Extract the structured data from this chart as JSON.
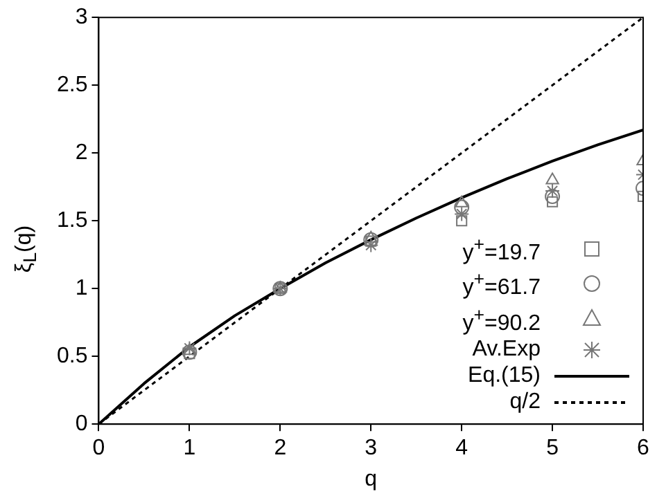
{
  "chart_data": {
    "type": "scatter",
    "xlabel": "q",
    "ylabel": "ξ$_{L}$(q)",
    "xlim": [
      0,
      6
    ],
    "ylim": [
      0,
      3
    ],
    "xticks": [
      0,
      1,
      2,
      3,
      4,
      5,
      6
    ],
    "yticks": [
      0,
      0.5,
      1,
      1.5,
      2,
      2.5,
      3
    ],
    "grid": false,
    "legend": "bottom right",
    "series": [
      {
        "name": "y$^{+}$=19.7",
        "marker": "square",
        "color": "#777777",
        "x": [
          1,
          2,
          3,
          4,
          5,
          6
        ],
        "values": [
          0.52,
          1.0,
          1.35,
          1.5,
          1.64,
          1.68
        ]
      },
      {
        "name": "y$^{+}$=61.7",
        "marker": "circle",
        "color": "#777777",
        "x": [
          1,
          2,
          3,
          4,
          5,
          6
        ],
        "values": [
          0.53,
          1.0,
          1.36,
          1.6,
          1.68,
          1.74
        ]
      },
      {
        "name": "y$^{+}$=90.2",
        "marker": "triangle",
        "color": "#777777",
        "x": [
          1,
          2,
          3,
          4,
          5,
          6
        ],
        "values": [
          0.54,
          1.0,
          1.37,
          1.63,
          1.8,
          1.94
        ]
      },
      {
        "name": "Av.Exp",
        "marker": "cross",
        "color": "#777777",
        "x": [
          1,
          2,
          3,
          4,
          5,
          6
        ],
        "values": [
          0.56,
          1.0,
          1.32,
          1.55,
          1.72,
          1.84
        ]
      },
      {
        "name": "Eq.(15)",
        "type": "line",
        "marker": "none",
        "line_style": "solid",
        "color": "#000000",
        "x": [
          0,
          0.5,
          1,
          1.5,
          2,
          2.5,
          3,
          3.5,
          4,
          4.5,
          5,
          5.5,
          6
        ],
        "values": [
          0,
          0.3,
          0.57,
          0.8,
          1.0,
          1.19,
          1.36,
          1.52,
          1.67,
          1.81,
          1.94,
          2.06,
          2.17
        ]
      },
      {
        "name": "q/2",
        "type": "line",
        "marker": "none",
        "line_style": "dashed",
        "color": "#000000",
        "x": [
          0,
          6
        ],
        "values": [
          0,
          3
        ]
      }
    ]
  }
}
